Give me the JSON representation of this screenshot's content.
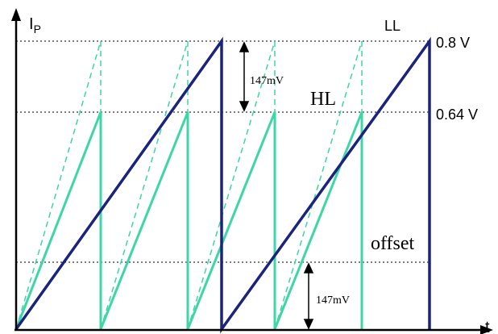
{
  "axes": {
    "y_label": "I",
    "y_label_sub": "P",
    "x_label": "t"
  },
  "levels": {
    "ll_label": "LL",
    "ll_value": "0.8 V",
    "hl_label": "HL",
    "hl_value": "0.64 V",
    "offset_label": "offset"
  },
  "annotations": {
    "top_delta": "147mV",
    "bottom_delta": "147mV"
  },
  "colors": {
    "navy": "#1a237e",
    "teal": "#3dd6a6",
    "axis": "#000000",
    "grid": "#000000"
  }
}
